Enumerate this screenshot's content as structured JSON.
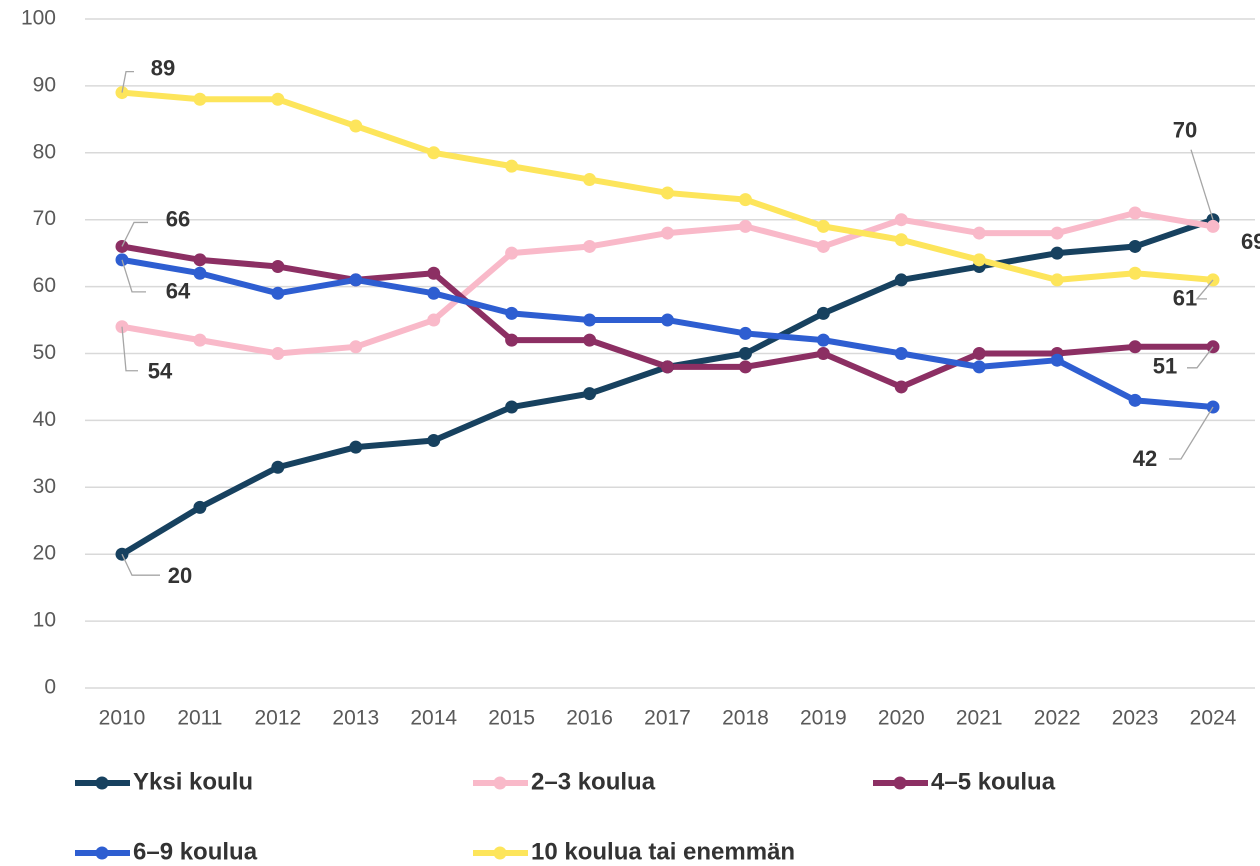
{
  "chart_data": {
    "type": "line",
    "categories": [
      "2010",
      "2011",
      "2012",
      "2013",
      "2014",
      "2015",
      "2016",
      "2017",
      "2018",
      "2019",
      "2020",
      "2021",
      "2022",
      "2023",
      "2024"
    ],
    "series": [
      {
        "name": "Yksi koulu",
        "color": "#17415f",
        "values": [
          20,
          27,
          33,
          36,
          37,
          42,
          44,
          48,
          50,
          56,
          61,
          63,
          65,
          66,
          70
        ]
      },
      {
        "name": "2–3 koulua",
        "color": "#f9b9c9",
        "values": [
          54,
          52,
          50,
          51,
          55,
          65,
          66,
          68,
          69,
          66,
          70,
          68,
          68,
          71,
          69
        ]
      },
      {
        "name": "4–5 koulua",
        "color": "#8c2f63",
        "values": [
          66,
          64,
          63,
          61,
          62,
          52,
          52,
          48,
          48,
          50,
          45,
          50,
          50,
          51,
          51
        ]
      },
      {
        "name": "6–9 koulua",
        "color": "#2e5ed1",
        "values": [
          64,
          62,
          59,
          61,
          59,
          56,
          55,
          55,
          53,
          52,
          50,
          48,
          49,
          43,
          42
        ]
      },
      {
        "name": "10 koulua tai enemmän",
        "color": "#fde55b",
        "values": [
          89,
          88,
          88,
          84,
          80,
          78,
          76,
          74,
          73,
          69,
          67,
          64,
          61,
          62,
          61
        ]
      }
    ],
    "ylim": [
      0,
      100
    ],
    "yticks": [
      0,
      10,
      20,
      30,
      40,
      50,
      60,
      70,
      80,
      90,
      100
    ],
    "grid": true
  }
}
